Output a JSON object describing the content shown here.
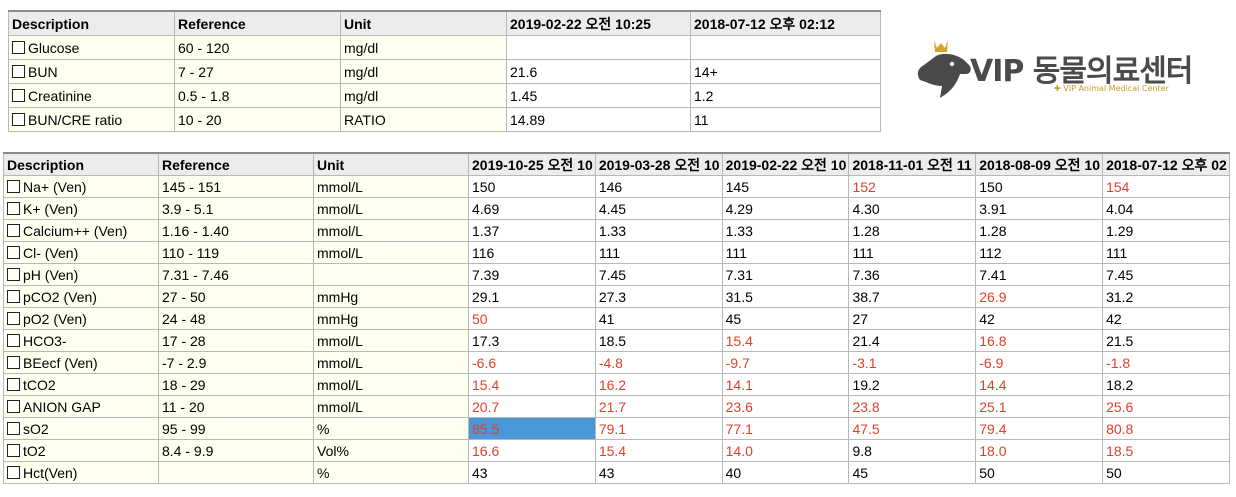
{
  "logo": {
    "title": "VIP 동물의료센터",
    "subtitle": "✚ VIP Animal Medical Center"
  },
  "top_table": {
    "headers": [
      "Description",
      "Reference",
      "Unit",
      "2019-02-22 오전 10:25",
      "2018-07-12 오후 02:12"
    ],
    "rows": [
      {
        "desc": "Glucose",
        "ref": "60 - 120",
        "unit": "mg/dl",
        "v": [
          {
            "t": ""
          },
          {
            "t": ""
          }
        ]
      },
      {
        "desc": "BUN",
        "ref": "7 - 27",
        "unit": "mg/dl",
        "v": [
          {
            "t": "21.6"
          },
          {
            "t": "14+"
          }
        ]
      },
      {
        "desc": "Creatinine",
        "ref": "0.5 - 1.8",
        "unit": "mg/dl",
        "v": [
          {
            "t": "1.45"
          },
          {
            "t": "1.2"
          }
        ]
      },
      {
        "desc": "BUN/CRE ratio",
        "ref": "10 - 20",
        "unit": "RATIO",
        "v": [
          {
            "t": "14.89"
          },
          {
            "t": "11"
          }
        ]
      }
    ]
  },
  "bottom_table": {
    "headers": [
      "Description",
      "Reference",
      "Unit",
      "2019-10-25 오전 10",
      "2019-03-28 오전 10",
      "2019-02-22 오전 10",
      "2018-11-01 오전 11",
      "2018-08-09 오전 10",
      "2018-07-12 오후 02"
    ],
    "rows": [
      {
        "desc": "Na+ (Ven)",
        "ref": "145 - 151",
        "unit": "mmol/L",
        "v": [
          {
            "t": "150"
          },
          {
            "t": "146"
          },
          {
            "t": "145"
          },
          {
            "t": "152",
            "a": true
          },
          {
            "t": "150"
          },
          {
            "t": "154",
            "a": true
          }
        ]
      },
      {
        "desc": "K+ (Ven)",
        "ref": "3.9 - 5.1",
        "unit": "mmol/L",
        "v": [
          {
            "t": "4.69"
          },
          {
            "t": "4.45"
          },
          {
            "t": "4.29"
          },
          {
            "t": "4.30"
          },
          {
            "t": "3.91"
          },
          {
            "t": "4.04"
          }
        ]
      },
      {
        "desc": "Calcium++ (Ven)",
        "ref": "1.16 - 1.40",
        "unit": "mmol/L",
        "v": [
          {
            "t": "1.37"
          },
          {
            "t": "1.33"
          },
          {
            "t": "1.33"
          },
          {
            "t": "1.28"
          },
          {
            "t": "1.28"
          },
          {
            "t": "1.29"
          }
        ]
      },
      {
        "desc": "Cl- (Ven)",
        "ref": "110 - 119",
        "unit": "mmol/L",
        "v": [
          {
            "t": "116"
          },
          {
            "t": "111"
          },
          {
            "t": "111"
          },
          {
            "t": "111"
          },
          {
            "t": "112"
          },
          {
            "t": "111"
          }
        ]
      },
      {
        "desc": "pH (Ven)",
        "ref": "7.31 - 7.46",
        "unit": "",
        "v": [
          {
            "t": "7.39"
          },
          {
            "t": "7.45"
          },
          {
            "t": "7.31"
          },
          {
            "t": "7.36"
          },
          {
            "t": "7.41"
          },
          {
            "t": "7.45"
          }
        ]
      },
      {
        "desc": "pCO2 (Ven)",
        "ref": "27 - 50",
        "unit": "mmHg",
        "v": [
          {
            "t": "29.1"
          },
          {
            "t": "27.3"
          },
          {
            "t": "31.5"
          },
          {
            "t": "38.7"
          },
          {
            "t": "26.9",
            "a": true
          },
          {
            "t": "31.2"
          }
        ]
      },
      {
        "desc": "pO2 (Ven)",
        "ref": "24 - 48",
        "unit": "mmHg",
        "v": [
          {
            "t": "50",
            "a": true
          },
          {
            "t": "41"
          },
          {
            "t": "45"
          },
          {
            "t": "27"
          },
          {
            "t": "42"
          },
          {
            "t": "42"
          }
        ]
      },
      {
        "desc": "HCO3-",
        "ref": "17 - 28",
        "unit": "mmol/L",
        "v": [
          {
            "t": "17.3"
          },
          {
            "t": "18.5"
          },
          {
            "t": "15.4",
            "a": true
          },
          {
            "t": "21.4"
          },
          {
            "t": "16.8",
            "a": true
          },
          {
            "t": "21.5"
          }
        ]
      },
      {
        "desc": "BEecf (Ven)",
        "ref": "-7 - 2.9",
        "unit": "mmol/L",
        "v": [
          {
            "t": "-6.6",
            "a": true
          },
          {
            "t": "-4.8",
            "a": true
          },
          {
            "t": "-9.7",
            "a": true
          },
          {
            "t": "-3.1",
            "a": true
          },
          {
            "t": "-6.9",
            "a": true
          },
          {
            "t": "-1.8",
            "a": true
          }
        ]
      },
      {
        "desc": "tCO2",
        "ref": "18 - 29",
        "unit": "mmol/L",
        "v": [
          {
            "t": "15.4",
            "a": true
          },
          {
            "t": "16.2",
            "a": true
          },
          {
            "t": "14.1",
            "a": true
          },
          {
            "t": "19.2"
          },
          {
            "t": "14.4",
            "a": true
          },
          {
            "t": "18.2"
          }
        ]
      },
      {
        "desc": "ANION GAP",
        "ref": "11 - 20",
        "unit": "mmol/L",
        "v": [
          {
            "t": "20.7",
            "a": true
          },
          {
            "t": "21.7",
            "a": true
          },
          {
            "t": "23.6",
            "a": true
          },
          {
            "t": "23.8",
            "a": true
          },
          {
            "t": "25.1",
            "a": true
          },
          {
            "t": "25.6",
            "a": true
          }
        ]
      },
      {
        "desc": "sO2",
        "ref": "95 - 99",
        "unit": "%",
        "v": [
          {
            "t": "85.5",
            "a": true,
            "sel": true
          },
          {
            "t": "79.1",
            "a": true
          },
          {
            "t": "77.1",
            "a": true
          },
          {
            "t": "47.5",
            "a": true
          },
          {
            "t": "79.4",
            "a": true
          },
          {
            "t": "80.8",
            "a": true
          }
        ]
      },
      {
        "desc": "tO2",
        "ref": "8.4 - 9.9",
        "unit": "Vol%",
        "v": [
          {
            "t": "16.6",
            "a": true
          },
          {
            "t": "15.4",
            "a": true
          },
          {
            "t": "14.0",
            "a": true
          },
          {
            "t": "9.8"
          },
          {
            "t": "18.0",
            "a": true
          },
          {
            "t": "18.5",
            "a": true
          }
        ]
      },
      {
        "desc": "Hct(Ven)",
        "ref": "",
        "unit": "%",
        "v": [
          {
            "t": "43"
          },
          {
            "t": "43"
          },
          {
            "t": "40"
          },
          {
            "t": "45"
          },
          {
            "t": "50"
          },
          {
            "t": "50"
          }
        ]
      }
    ]
  },
  "colors": {
    "abnormal": "#e43e2a",
    "selected": "#4a98d8",
    "label_bg": "#fffff0",
    "header_bg": "#ececec"
  }
}
